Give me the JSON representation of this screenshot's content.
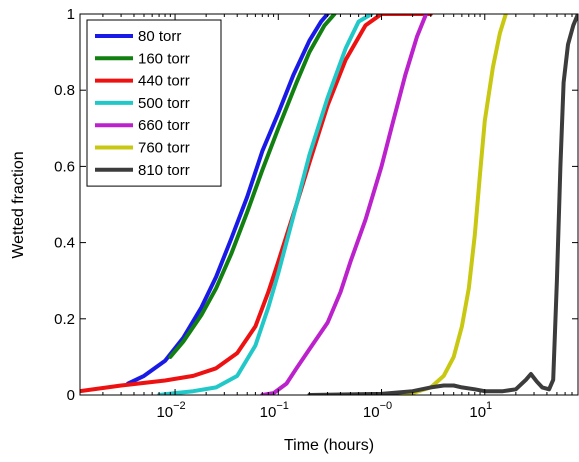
{
  "chart_data": {
    "type": "line",
    "xlabel": "Time (hours)",
    "ylabel": "Wetted fraction",
    "xscale": "log",
    "xlim": [
      0.0012,
      80
    ],
    "ylim": [
      0,
      1
    ],
    "grid": false,
    "legend_position": "top-left",
    "x_ticks": [
      {
        "value": 0.01,
        "base": "10",
        "exp": "−2"
      },
      {
        "value": 0.1,
        "base": "10",
        "exp": "−1"
      },
      {
        "value": 1,
        "base": "10",
        "exp": "−0"
      },
      {
        "value": 10,
        "base": "10",
        "exp": "1"
      }
    ],
    "y_ticks": [
      {
        "value": 0,
        "label": "0"
      },
      {
        "value": 0.2,
        "label": "0.2"
      },
      {
        "value": 0.4,
        "label": "0.4"
      },
      {
        "value": 0.6,
        "label": "0.6"
      },
      {
        "value": 0.8,
        "label": "0.8"
      },
      {
        "value": 1,
        "label": "1"
      }
    ],
    "series": [
      {
        "name": "80 torr",
        "color": "#1a1ae6",
        "points": [
          [
            0.0035,
            0.03
          ],
          [
            0.005,
            0.05
          ],
          [
            0.008,
            0.09
          ],
          [
            0.012,
            0.15
          ],
          [
            0.018,
            0.23
          ],
          [
            0.025,
            0.31
          ],
          [
            0.035,
            0.41
          ],
          [
            0.05,
            0.52
          ],
          [
            0.07,
            0.64
          ],
          [
            0.1,
            0.74
          ],
          [
            0.14,
            0.84
          ],
          [
            0.2,
            0.93
          ],
          [
            0.26,
            0.98
          ],
          [
            0.3,
            1.0
          ]
        ]
      },
      {
        "name": "160 torr",
        "color": "#118011",
        "points": [
          [
            0.009,
            0.1
          ],
          [
            0.012,
            0.14
          ],
          [
            0.018,
            0.21
          ],
          [
            0.025,
            0.28
          ],
          [
            0.035,
            0.37
          ],
          [
            0.05,
            0.48
          ],
          [
            0.07,
            0.59
          ],
          [
            0.1,
            0.7
          ],
          [
            0.15,
            0.82
          ],
          [
            0.2,
            0.9
          ],
          [
            0.28,
            0.97
          ],
          [
            0.35,
            1.0
          ]
        ]
      },
      {
        "name": "440 torr",
        "color": "#ee1111",
        "points": [
          [
            0.0012,
            0.01
          ],
          [
            0.003,
            0.025
          ],
          [
            0.008,
            0.038
          ],
          [
            0.015,
            0.05
          ],
          [
            0.025,
            0.07
          ],
          [
            0.04,
            0.11
          ],
          [
            0.06,
            0.18
          ],
          [
            0.08,
            0.27
          ],
          [
            0.1,
            0.35
          ],
          [
            0.15,
            0.5
          ],
          [
            0.2,
            0.61
          ],
          [
            0.3,
            0.76
          ],
          [
            0.45,
            0.88
          ],
          [
            0.7,
            0.97
          ],
          [
            1.0,
            1.0
          ],
          [
            3.0,
            1.0
          ]
        ]
      },
      {
        "name": "500 torr",
        "color": "#22c8c8",
        "points": [
          [
            0.007,
            0.0
          ],
          [
            0.01,
            0.005
          ],
          [
            0.015,
            0.01
          ],
          [
            0.025,
            0.02
          ],
          [
            0.04,
            0.05
          ],
          [
            0.06,
            0.13
          ],
          [
            0.08,
            0.23
          ],
          [
            0.1,
            0.32
          ],
          [
            0.15,
            0.5
          ],
          [
            0.2,
            0.63
          ],
          [
            0.3,
            0.78
          ],
          [
            0.45,
            0.91
          ],
          [
            0.6,
            0.98
          ],
          [
            0.8,
            1.0
          ]
        ]
      },
      {
        "name": "660 torr",
        "color": "#bb22cc",
        "points": [
          [
            0.07,
            0.0
          ],
          [
            0.09,
            0.005
          ],
          [
            0.12,
            0.03
          ],
          [
            0.15,
            0.07
          ],
          [
            0.2,
            0.12
          ],
          [
            0.3,
            0.19
          ],
          [
            0.4,
            0.27
          ],
          [
            0.5,
            0.35
          ],
          [
            0.7,
            0.46
          ],
          [
            1.0,
            0.6
          ],
          [
            1.3,
            0.72
          ],
          [
            1.7,
            0.84
          ],
          [
            2.2,
            0.94
          ],
          [
            2.7,
            1.0
          ]
        ]
      },
      {
        "name": "760 torr",
        "color": "#c8c812",
        "points": [
          [
            0.5,
            0.0
          ],
          [
            2.0,
            0.005
          ],
          [
            3.0,
            0.02
          ],
          [
            4.0,
            0.05
          ],
          [
            5.0,
            0.1
          ],
          [
            6.0,
            0.18
          ],
          [
            7.0,
            0.28
          ],
          [
            8.0,
            0.42
          ],
          [
            9.0,
            0.58
          ],
          [
            10.0,
            0.72
          ],
          [
            12.0,
            0.86
          ],
          [
            14.0,
            0.95
          ],
          [
            16.0,
            1.0
          ]
        ]
      },
      {
        "name": "810 torr",
        "color": "#3c3c3c",
        "points": [
          [
            0.2,
            0.0
          ],
          [
            1.0,
            0.003
          ],
          [
            2.0,
            0.01
          ],
          [
            3.0,
            0.02
          ],
          [
            4.0,
            0.025
          ],
          [
            5.0,
            0.025
          ],
          [
            6.0,
            0.02
          ],
          [
            8.0,
            0.015
          ],
          [
            10.0,
            0.01
          ],
          [
            15.0,
            0.01
          ],
          [
            20.0,
            0.015
          ],
          [
            25.0,
            0.04
          ],
          [
            28.0,
            0.055
          ],
          [
            32.0,
            0.035
          ],
          [
            36.0,
            0.02
          ],
          [
            42.0,
            0.015
          ],
          [
            46.0,
            0.04
          ],
          [
            50.0,
            0.3
          ],
          [
            54.0,
            0.6
          ],
          [
            58.0,
            0.82
          ],
          [
            64.0,
            0.92
          ],
          [
            72.0,
            0.97
          ],
          [
            80.0,
            1.0
          ]
        ]
      }
    ]
  }
}
